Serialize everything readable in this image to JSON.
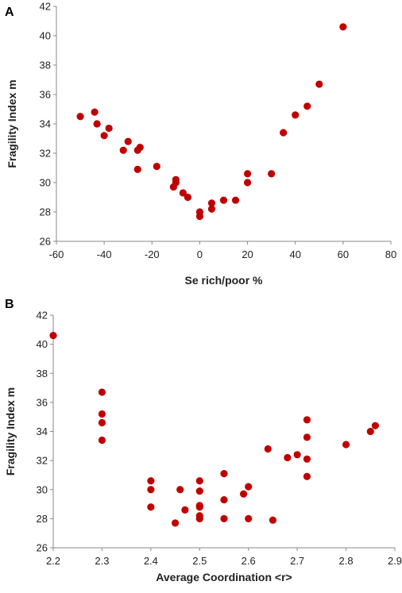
{
  "chart_data": [
    {
      "type": "scatter",
      "panel_label": "A",
      "xlabel": "Se rich/poor %",
      "ylabel": "Fragility Index m",
      "xlim": [
        -60,
        80
      ],
      "ylim": [
        26,
        42
      ],
      "xticks": [
        -60,
        -40,
        -20,
        0,
        20,
        40,
        60,
        80
      ],
      "yticks": [
        26,
        28,
        30,
        32,
        34,
        36,
        38,
        40,
        42
      ],
      "xtick_labels": [
        "-60",
        "-40",
        "-20",
        "0",
        "20",
        "40",
        "60",
        "80"
      ],
      "ytick_labels": [
        "26",
        "28",
        "30",
        "32",
        "34",
        "36",
        "38",
        "40",
        "42"
      ],
      "grid": false,
      "marker_color": "#c00000",
      "points": [
        {
          "x": -50,
          "y": 34.5
        },
        {
          "x": -44,
          "y": 34.8
        },
        {
          "x": -43,
          "y": 34.0
        },
        {
          "x": -40,
          "y": 33.2
        },
        {
          "x": -38,
          "y": 33.7
        },
        {
          "x": -32,
          "y": 32.2
        },
        {
          "x": -30,
          "y": 32.8
        },
        {
          "x": -26,
          "y": 32.2
        },
        {
          "x": -25,
          "y": 32.4
        },
        {
          "x": -26,
          "y": 30.9
        },
        {
          "x": -18,
          "y": 31.1
        },
        {
          "x": -10,
          "y": 30.2
        },
        {
          "x": -10,
          "y": 30.0
        },
        {
          "x": -11,
          "y": 29.7
        },
        {
          "x": -7,
          "y": 29.3
        },
        {
          "x": -5,
          "y": 29.0
        },
        {
          "x": 0,
          "y": 28.0
        },
        {
          "x": 0,
          "y": 27.7
        },
        {
          "x": 5,
          "y": 28.2
        },
        {
          "x": 5,
          "y": 28.6
        },
        {
          "x": 10,
          "y": 28.8
        },
        {
          "x": 15,
          "y": 28.8
        },
        {
          "x": 20,
          "y": 30.0
        },
        {
          "x": 20,
          "y": 30.6
        },
        {
          "x": 30,
          "y": 30.6
        },
        {
          "x": 35,
          "y": 33.4
        },
        {
          "x": 40,
          "y": 34.6
        },
        {
          "x": 45,
          "y": 35.2
        },
        {
          "x": 50,
          "y": 36.7
        },
        {
          "x": 60,
          "y": 40.6
        }
      ]
    },
    {
      "type": "scatter",
      "panel_label": "B",
      "xlabel": "Average Coordination <r>",
      "ylabel": "Fragility Index m",
      "xlim": [
        2.2,
        2.9
      ],
      "ylim": [
        26,
        42
      ],
      "xticks": [
        2.2,
        2.3,
        2.4,
        2.5,
        2.6,
        2.7,
        2.8,
        2.9
      ],
      "yticks": [
        26,
        28,
        30,
        32,
        34,
        36,
        38,
        40,
        42
      ],
      "xtick_labels": [
        "2.2",
        "2.3",
        "2.4",
        "2.5",
        "2.6",
        "2.7",
        "2.8",
        "2.9"
      ],
      "ytick_labels": [
        "26",
        "28",
        "30",
        "32",
        "34",
        "36",
        "38",
        "40",
        "42"
      ],
      "grid": false,
      "marker_color": "#c00000",
      "points": [
        {
          "x": 2.2,
          "y": 40.6
        },
        {
          "x": 2.3,
          "y": 36.7
        },
        {
          "x": 2.3,
          "y": 35.2
        },
        {
          "x": 2.3,
          "y": 34.6
        },
        {
          "x": 2.3,
          "y": 33.4
        },
        {
          "x": 2.4,
          "y": 30.6
        },
        {
          "x": 2.4,
          "y": 30.0
        },
        {
          "x": 2.4,
          "y": 28.8
        },
        {
          "x": 2.45,
          "y": 27.7
        },
        {
          "x": 2.46,
          "y": 30.0
        },
        {
          "x": 2.47,
          "y": 28.6
        },
        {
          "x": 2.5,
          "y": 30.6
        },
        {
          "x": 2.5,
          "y": 29.9
        },
        {
          "x": 2.5,
          "y": 28.9
        },
        {
          "x": 2.5,
          "y": 28.8
        },
        {
          "x": 2.5,
          "y": 28.2
        },
        {
          "x": 2.5,
          "y": 28.0
        },
        {
          "x": 2.55,
          "y": 31.1
        },
        {
          "x": 2.55,
          "y": 29.3
        },
        {
          "x": 2.55,
          "y": 28.0
        },
        {
          "x": 2.59,
          "y": 29.7
        },
        {
          "x": 2.6,
          "y": 30.2
        },
        {
          "x": 2.6,
          "y": 28.0
        },
        {
          "x": 2.65,
          "y": 27.9
        },
        {
          "x": 2.64,
          "y": 32.8
        },
        {
          "x": 2.68,
          "y": 32.2
        },
        {
          "x": 2.7,
          "y": 32.4
        },
        {
          "x": 2.72,
          "y": 34.8
        },
        {
          "x": 2.72,
          "y": 33.6
        },
        {
          "x": 2.72,
          "y": 32.1
        },
        {
          "x": 2.72,
          "y": 30.9
        },
        {
          "x": 2.8,
          "y": 33.1
        },
        {
          "x": 2.85,
          "y": 34.0
        },
        {
          "x": 2.86,
          "y": 34.4
        }
      ]
    }
  ]
}
